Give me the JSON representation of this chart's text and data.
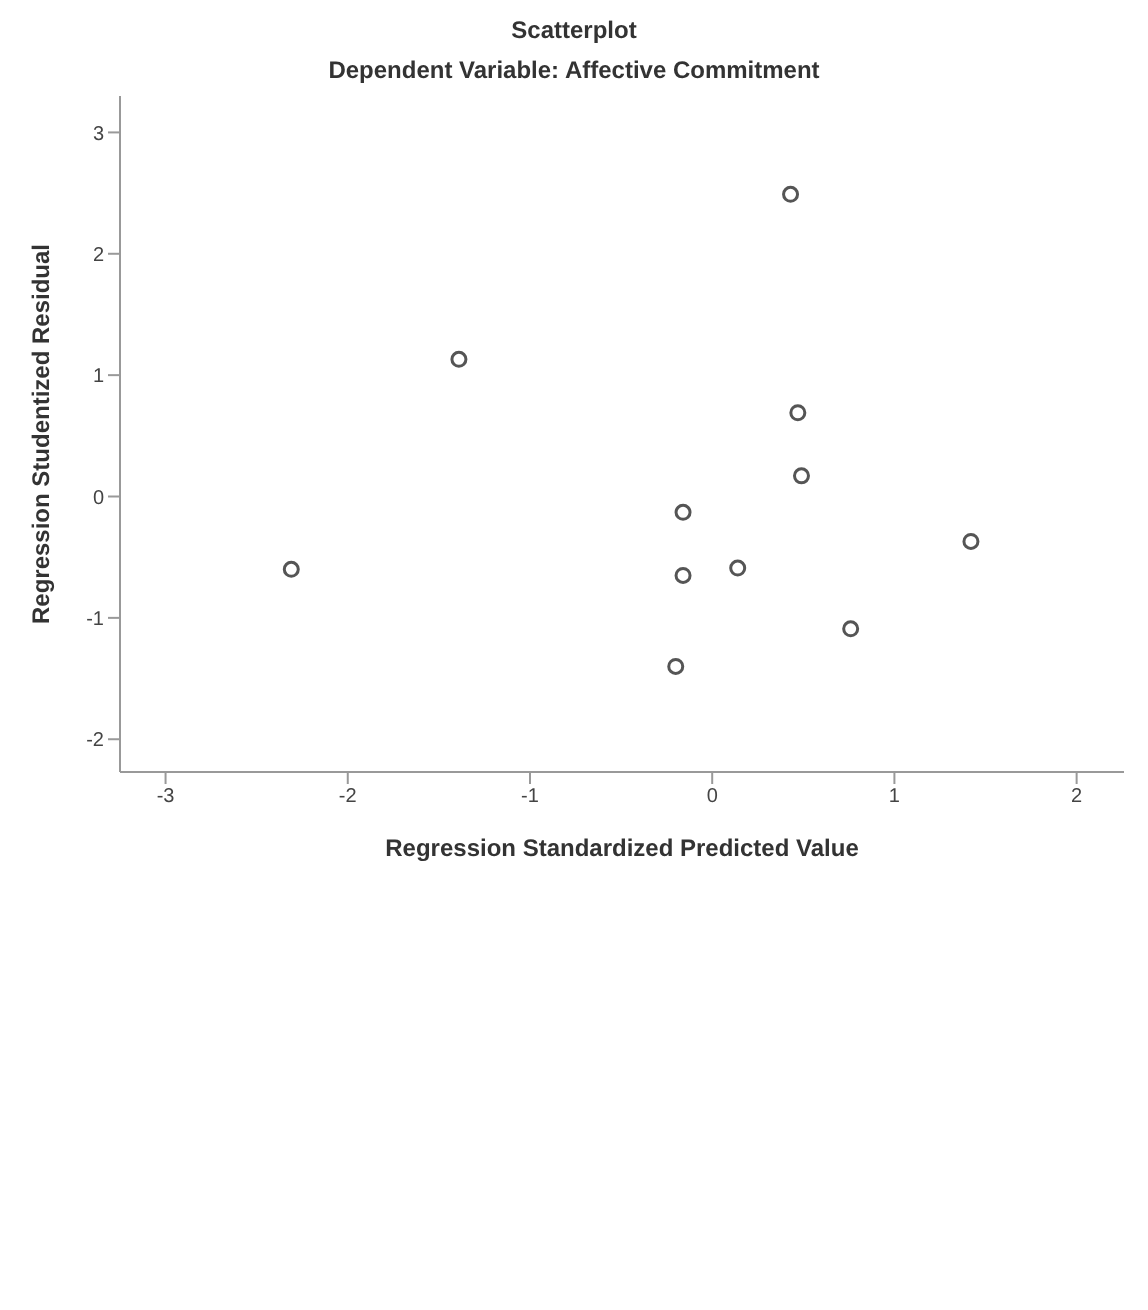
{
  "chart_data": {
    "type": "scatter",
    "title": "Scatterplot",
    "subtitle": "Dependent Variable: Affective Commitment",
    "xlabel": "Regression Standardized Predicted Value",
    "ylabel": "Regression Studentized Residual",
    "x": [
      0.43,
      -1.39,
      0.47,
      0.49,
      -0.16,
      -2.31,
      1.42,
      0.14,
      -0.16,
      0.76,
      -0.2
    ],
    "values": [
      2.49,
      1.13,
      0.69,
      0.17,
      -0.13,
      -0.6,
      -0.37,
      -0.59,
      -0.65,
      -1.09,
      -1.4
    ],
    "color": "#555555",
    "marker": "circle",
    "grid": false,
    "xlim": [
      -3.25,
      2.26
    ],
    "xticks": [
      -3,
      -2,
      -1,
      0,
      1,
      2
    ],
    "ylim": [
      -2.27,
      3.3
    ],
    "yticks": [
      -2,
      -1,
      0,
      1,
      2,
      3
    ]
  }
}
